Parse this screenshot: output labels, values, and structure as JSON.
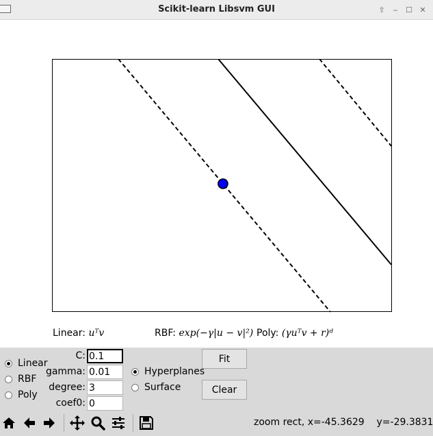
{
  "window": {
    "title": "Scikit-learn Libsvm GUI",
    "controls": [
      "up-arrow-icon",
      "minimize-icon",
      "maximize-icon",
      "close-icon"
    ]
  },
  "plot": {
    "frame_color": "#000000",
    "point_outer_color": "#ff0000",
    "point_inner_color": "#0000ff"
  },
  "kernels": {
    "linear_prefix": "Linear:",
    "linear_formula": "uᵀv",
    "rbf_prefix": "RBF:",
    "rbf_formula": "exp(−γ|u − v|²)",
    "poly_prefix": "Poly:",
    "poly_formula": "(γuᵀv + r)ᵈ"
  },
  "kernel_radio": {
    "options": [
      {
        "label": "Linear",
        "checked": true
      },
      {
        "label": "RBF",
        "checked": false
      },
      {
        "label": "Poly",
        "checked": false
      }
    ]
  },
  "params": {
    "C_label": "C:",
    "C_value": "0.1",
    "gamma_label": "gamma:",
    "gamma_value": "0.01",
    "degree_label": "degree:",
    "degree_value": "3",
    "coef0_label": "coef0:",
    "coef0_value": "0"
  },
  "display_radio": {
    "options": [
      {
        "label": "Hyperplanes",
        "checked": true
      },
      {
        "label": "Surface",
        "checked": false
      }
    ]
  },
  "buttons": {
    "fit": "Fit",
    "clear": "Clear"
  },
  "toolbar": {
    "icons": [
      "home-icon",
      "back-arrow-icon",
      "forward-arrow-icon",
      "pan-icon",
      "zoom-icon",
      "configure-subplots-icon",
      "save-icon"
    ]
  },
  "status": {
    "mode": "zoom rect,",
    "x_readout": "x=-45.3629",
    "y_readout": "y=-29.3831"
  }
}
